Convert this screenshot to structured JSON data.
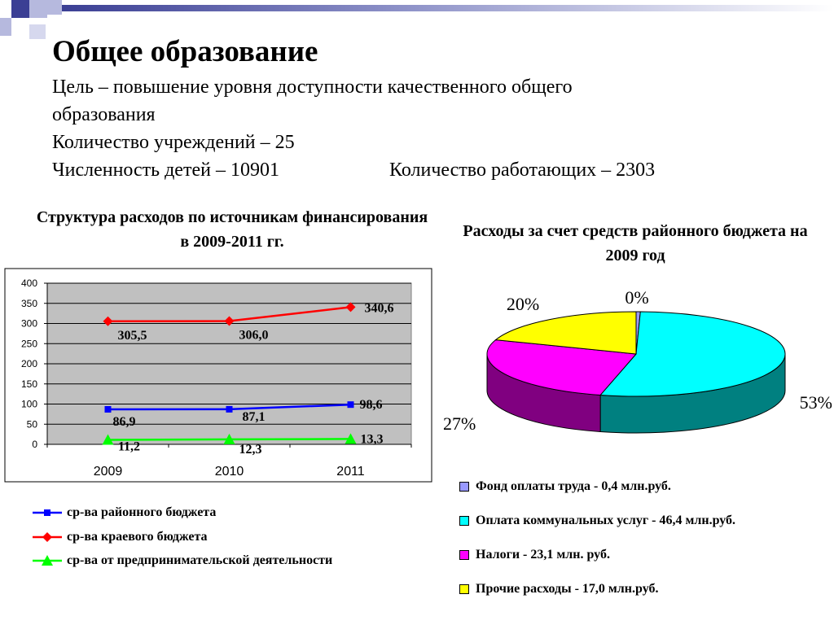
{
  "slide": {
    "title": "Общее образование",
    "lines": [
      "Цель – повышение уровня доступности качественного общего",
      "образования",
      "Количество учреждений – 25",
      "Численность детей –  10901"
    ],
    "workers": "Количество работающих – 2303"
  },
  "colors": {
    "deco_dark": "#3b3f94",
    "deco_light": "#b6b9de",
    "plot_bg": "#c0c0c0",
    "district": "#0000ff",
    "regional": "#ff0000",
    "business": "#00ff00"
  },
  "chart_data": [
    {
      "type": "line",
      "title": "Структура расходов по источникам финансирования в 2009-2011 гг.",
      "categories": [
        "2009",
        "2010",
        "2011"
      ],
      "ylim": [
        0,
        400
      ],
      "yticks": [
        0,
        50,
        100,
        150,
        200,
        250,
        300,
        350,
        400
      ],
      "grid": true,
      "legend": "bottom",
      "series": [
        {
          "name": "ср-ва районного бюджета",
          "values": [
            86.9,
            87.1,
            98.6
          ],
          "labels": [
            "86,9",
            "87,1",
            "98,6"
          ],
          "color": "#0000ff",
          "marker": "square"
        },
        {
          "name": "ср-ва краевого бюджета",
          "values": [
            305.5,
            306.0,
            340.6
          ],
          "labels": [
            "305,5",
            "306,0",
            "340,6"
          ],
          "color": "#ff0000",
          "marker": "diamond"
        },
        {
          "name": "ср-ва от предпринимательской деятельности",
          "values": [
            11.2,
            12.3,
            13.3
          ],
          "labels": [
            "11,2",
            "12,3",
            "13,3"
          ],
          "color": "#00ff00",
          "marker": "triangle"
        }
      ]
    },
    {
      "type": "pie",
      "title": "Расходы за счет средств районного бюджета на 2009 год",
      "legend": "bottom",
      "slices": [
        {
          "name": "Фонд оплаты труда - 0,4 млн.руб.",
          "value": 0.4,
          "label": "0%",
          "color": "#9999ff"
        },
        {
          "name": "Оплата коммунальных услуг - 46,4 млн.руб.",
          "value": 46.4,
          "label": "53%",
          "color": "#00ffff"
        },
        {
          "name": "Налоги - 23,1 млн. руб.",
          "value": 23.1,
          "label": "27%",
          "color": "#ff00ff"
        },
        {
          "name": "Прочие расходы - 17,0 млн.руб.",
          "value": 17.0,
          "label": "20%",
          "color": "#ffff00"
        }
      ]
    }
  ]
}
